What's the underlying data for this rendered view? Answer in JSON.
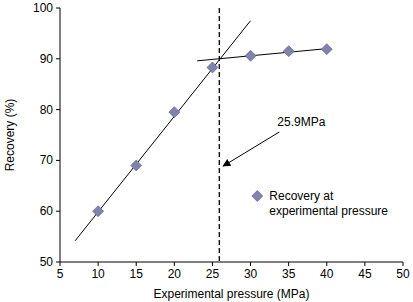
{
  "chart_data": {
    "type": "scatter",
    "x_label": "Experimental pressure (MPa)",
    "y_label": "Recovery (%)",
    "xlim": [
      5,
      50
    ],
    "xticks": [
      5,
      10,
      15,
      20,
      25,
      30,
      35,
      40,
      45,
      50
    ],
    "ylim": [
      50,
      100
    ],
    "yticks": [
      50,
      60,
      70,
      80,
      90,
      100
    ],
    "grid": false,
    "series": [
      {
        "name": "Recovery at experimental pressure",
        "color": "#8282ae",
        "marker": "diamond",
        "x": [
          10,
          15,
          20,
          25,
          30,
          35,
          40
        ],
        "values": [
          60,
          69,
          79.5,
          88.3,
          90.6,
          91.5,
          91.9
        ]
      }
    ],
    "trend_lines": [
      {
        "color": "#000000",
        "line_style": "solid",
        "x": [
          7,
          30
        ],
        "values": [
          54.2,
          97.5
        ]
      },
      {
        "color": "#000000",
        "line_style": "solid",
        "x": [
          23,
          40
        ],
        "values": [
          89.6,
          92
        ]
      }
    ],
    "reference_line": {
      "x": 25.9,
      "color": "#000000",
      "line_style": "dashed"
    },
    "annotation": {
      "text": "25.9MPa"
    }
  }
}
